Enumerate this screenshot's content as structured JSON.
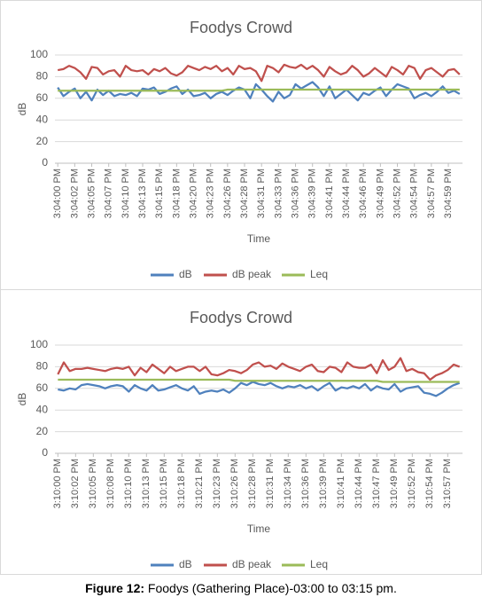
{
  "chart_data": [
    {
      "type": "line",
      "title": "Foodys Crowd",
      "x_label": "Time",
      "y_label": "dB",
      "categories": [
        "3:04:00 PM",
        null,
        null,
        "3:04:02 PM",
        null,
        null,
        "3:04:05 PM",
        null,
        null,
        "3:04:07 PM",
        null,
        null,
        "3:04:10 PM",
        null,
        null,
        "3:04:13 PM",
        null,
        null,
        "3:04:15 PM",
        null,
        null,
        "3:04:18 PM",
        null,
        null,
        "3:04:20 PM",
        null,
        null,
        "3:04:23 PM",
        null,
        null,
        "3:04:26 PM",
        null,
        null,
        "3:04:28 PM",
        null,
        null,
        "3:04:31 PM",
        null,
        null,
        "3:04:33 PM",
        null,
        null,
        "3:04:36 PM",
        null,
        null,
        "3:04:39 PM",
        null,
        null,
        "3:04:41 PM",
        null,
        null,
        "3:04:44 PM",
        null,
        null,
        "3:04:46 PM",
        null,
        null,
        "3:04:49 PM",
        null,
        null,
        "3:04:52 PM",
        null,
        null,
        "3:04:54 PM",
        null,
        null,
        "3:04:57 PM",
        null,
        null,
        "3:04:59 PM",
        null,
        null
      ],
      "series": [
        {
          "name": "dB",
          "color": "#4f81bd",
          "values": [
            70,
            62,
            66,
            69,
            60,
            66,
            58,
            68,
            63,
            67,
            62,
            64,
            63,
            65,
            62,
            69,
            68,
            70,
            64,
            66,
            69,
            71,
            64,
            68,
            62,
            63,
            65,
            60,
            64,
            66,
            63,
            67,
            70,
            68,
            60,
            73,
            68,
            62,
            57,
            66,
            60,
            63,
            73,
            69,
            72,
            75,
            70,
            62,
            71,
            60,
            64,
            68,
            63,
            58,
            65,
            63,
            67,
            70,
            62,
            68,
            73,
            71,
            69,
            60,
            63,
            65,
            62,
            66,
            71,
            65,
            67,
            64
          ]
        },
        {
          "name": "dB peak",
          "color": "#c0504d",
          "values": [
            86,
            87,
            90,
            88,
            84,
            78,
            89,
            88,
            82,
            85,
            86,
            80,
            90,
            86,
            85,
            86,
            82,
            87,
            85,
            88,
            83,
            81,
            84,
            90,
            88,
            86,
            89,
            87,
            90,
            85,
            88,
            82,
            90,
            87,
            88,
            85,
            76,
            90,
            88,
            84,
            91,
            89,
            88,
            91,
            87,
            90,
            86,
            80,
            89,
            85,
            82,
            84,
            90,
            86,
            80,
            83,
            88,
            84,
            80,
            89,
            86,
            82,
            90,
            88,
            78,
            86,
            88,
            84,
            80,
            86,
            87,
            82
          ]
        },
        {
          "name": "Leq",
          "color": "#9bbb59",
          "values": [
            67,
            67,
            67,
            67,
            67,
            67,
            67,
            67,
            67,
            67,
            67,
            67,
            67,
            67,
            67,
            67,
            67,
            67,
            67,
            67,
            67,
            67,
            67,
            67,
            67,
            67,
            67,
            67,
            67,
            67,
            68,
            68,
            68,
            68,
            68,
            68,
            68,
            68,
            68,
            68,
            68,
            68,
            68,
            68,
            68,
            68,
            68,
            68,
            68,
            68,
            68,
            68,
            68,
            68,
            68,
            68,
            68,
            68,
            68,
            68,
            68,
            68,
            68,
            68,
            68,
            68,
            68,
            68,
            68,
            68,
            68,
            68
          ]
        }
      ],
      "ylim": [
        0,
        100
      ],
      "yticks": [
        0,
        20,
        40,
        60,
        80,
        100
      ],
      "grid": true,
      "legend": "bottom"
    },
    {
      "type": "line",
      "title": "Foodys Crowd",
      "x_label": "Time",
      "y_label": "dB",
      "categories": [
        "3:10:00 PM",
        null,
        null,
        "3:10:02 PM",
        null,
        null,
        "3:10:05 PM",
        null,
        null,
        "3:10:08 PM",
        null,
        null,
        "3:10:10 PM",
        null,
        null,
        "3:10:13 PM",
        null,
        null,
        "3:10:15 PM",
        null,
        null,
        "3:10:18 PM",
        null,
        null,
        "3:10:21 PM",
        null,
        null,
        "3:10:23 PM",
        null,
        null,
        "3:10:26 PM",
        null,
        null,
        "3:10:28 PM",
        null,
        null,
        "3:10:31 PM",
        null,
        null,
        "3:10:34 PM",
        null,
        null,
        "3:10:36 PM",
        null,
        null,
        "3:10:39 PM",
        null,
        null,
        "3:10:41 PM",
        null,
        null,
        "3:10:44 PM",
        null,
        null,
        "3:10:47 PM",
        null,
        null,
        "3:10:49 PM",
        null,
        null,
        "3:10:52 PM",
        null,
        null,
        "3:10:54 PM",
        null,
        null,
        "3:10:57 PM",
        null,
        null
      ],
      "series": [
        {
          "name": "dB",
          "color": "#4f81bd",
          "values": [
            59,
            58,
            60,
            59,
            63,
            64,
            63,
            62,
            60,
            62,
            63,
            62,
            57,
            63,
            60,
            58,
            63,
            58,
            59,
            61,
            63,
            60,
            58,
            62,
            55,
            57,
            58,
            57,
            59,
            56,
            60,
            65,
            63,
            66,
            64,
            63,
            65,
            62,
            60,
            62,
            61,
            63,
            60,
            62,
            58,
            62,
            65,
            58,
            61,
            60,
            62,
            60,
            64,
            58,
            62,
            60,
            59,
            64,
            57,
            60,
            61,
            62,
            56,
            55,
            53,
            56,
            60,
            63,
            65
          ]
        },
        {
          "name": "dB peak",
          "color": "#c0504d",
          "values": [
            73,
            84,
            76,
            78,
            78,
            79,
            78,
            77,
            76,
            78,
            79,
            78,
            80,
            72,
            79,
            75,
            82,
            78,
            74,
            80,
            76,
            78,
            80,
            80,
            76,
            80,
            73,
            72,
            74,
            77,
            76,
            74,
            77,
            82,
            84,
            80,
            81,
            78,
            83,
            80,
            78,
            76,
            80,
            82,
            76,
            75,
            80,
            79,
            75,
            84,
            80,
            79,
            79,
            82,
            74,
            86,
            77,
            80,
            88,
            76,
            78,
            75,
            74,
            68,
            72,
            74,
            77,
            82,
            80
          ]
        },
        {
          "name": "Leq",
          "color": "#9bbb59",
          "values": [
            68,
            68,
            68,
            68,
            68,
            68,
            68,
            68,
            68,
            68,
            68,
            68,
            68,
            68,
            68,
            68,
            68,
            68,
            68,
            68,
            68,
            68,
            68,
            68,
            68,
            68,
            68,
            68,
            68,
            68,
            67,
            67,
            67,
            67,
            67,
            67,
            67,
            67,
            67,
            67,
            67,
            67,
            67,
            67,
            67,
            67,
            67,
            67,
            67,
            67,
            67,
            67,
            67,
            67,
            67,
            66,
            66,
            66,
            66,
            66,
            66,
            66,
            66,
            66,
            66,
            66,
            66,
            66,
            66
          ]
        }
      ],
      "ylim": [
        0,
        100
      ],
      "yticks": [
        0,
        20,
        40,
        60,
        80,
        100
      ],
      "grid": true,
      "legend": "bottom"
    }
  ],
  "caption": {
    "label": "Figure 12:",
    "text": "Foodys (Gathering Place)-03:00 to 03:15 pm."
  }
}
